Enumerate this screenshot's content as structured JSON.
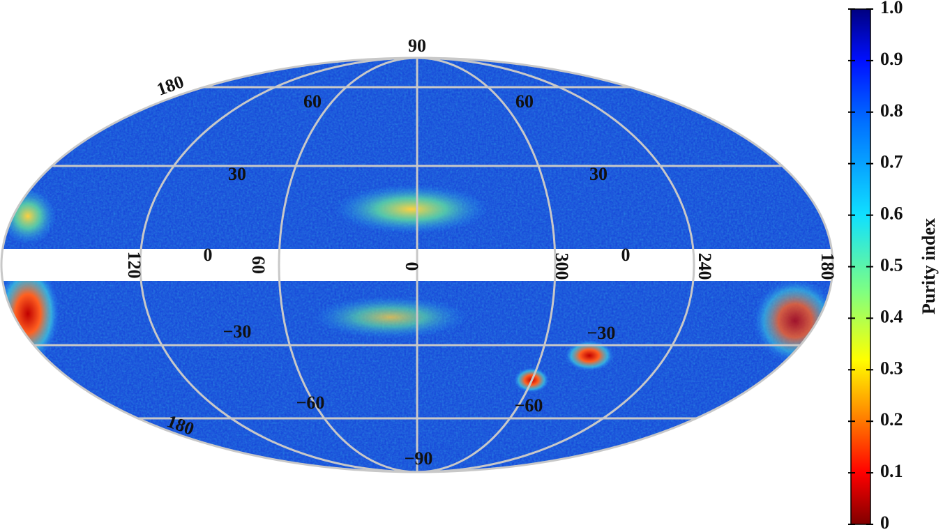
{
  "map": {
    "latitude_labels": [
      "90",
      "60",
      "60",
      "30",
      "30",
      "0",
      "0",
      "−30",
      "−30",
      "−60",
      "−60",
      "−90"
    ],
    "longitude_labels": [
      "180",
      "120",
      "60",
      "0",
      "300",
      "240",
      "180",
      "180"
    ]
  },
  "colorbar": {
    "label": "Purity index",
    "lim": [
      0,
      1
    ],
    "ticks": [
      0,
      0.1,
      0.2,
      0.3,
      0.4,
      0.5,
      0.6,
      0.7,
      0.8,
      0.9,
      {
        "value": 1,
        "label": "1.0"
      }
    ]
  }
}
